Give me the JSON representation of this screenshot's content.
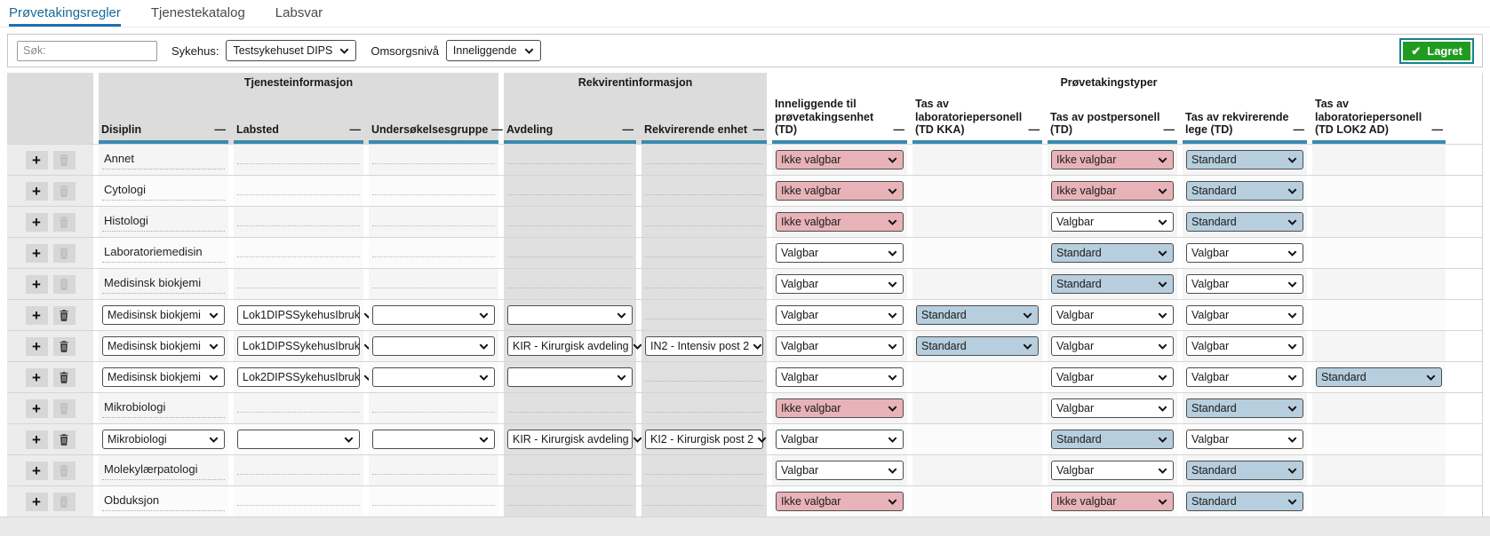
{
  "tabs": [
    {
      "label": "Prøvetakingsregler",
      "active": true
    },
    {
      "label": "Tjenestekatalog",
      "active": false
    },
    {
      "label": "Labsvar",
      "active": false
    }
  ],
  "toolbar": {
    "search_placeholder": "Søk:",
    "hospital_label": "Sykehus:",
    "hospital_value": "Testsykehuset DIPS",
    "care_level_label": "Omsorgsnivå",
    "care_level_value": "Inneliggende",
    "saved_button": "Lagret"
  },
  "icons": {
    "add": "+",
    "collapse": "—",
    "check": "✔"
  },
  "colors": {
    "header_accent_teal": "#3a8ab0",
    "tab_underline_blue": "#1d70b0",
    "saved_green": "#1f9c1f",
    "saved_border_teal": "#17808f",
    "not_selectable_pink": "#e8b3b8",
    "standard_blue": "#b6cedd"
  },
  "table": {
    "groups": [
      "Tjenesteinformasjon",
      "Rekvirentinformasjon",
      "Prøvetakingstyper"
    ],
    "columns": [
      "Disiplin",
      "Labsted",
      "Undersøkelsesgruppe",
      "Avdeling",
      "Rekvirerende enhet",
      "Inneliggende til prøvetakingsenhet (TD)",
      "Tas av laboratoriepersonell (TD KKA)",
      "Tas av postpersonell (TD)",
      "Tas av rekvirerende lege (TD)",
      "Tas av laboratoriepersonell (TD LOK2 AD)"
    ],
    "select_options": {
      "selectable": "Valgbar",
      "not_selectable": "Ikke valgbar",
      "standard": "Standard"
    },
    "rows": [
      {
        "kind": "group",
        "disiplin": "Annet",
        "pt": [
          {
            "value": "Ikke valgbar",
            "variant": "pink"
          },
          null,
          {
            "value": "Ikke valgbar",
            "variant": "pink"
          },
          {
            "value": "Standard",
            "variant": "blue"
          },
          null
        ]
      },
      {
        "kind": "group",
        "disiplin": "Cytologi",
        "pt": [
          {
            "value": "Ikke valgbar",
            "variant": "pink"
          },
          null,
          {
            "value": "Ikke valgbar",
            "variant": "pink"
          },
          {
            "value": "Standard",
            "variant": "blue"
          },
          null
        ]
      },
      {
        "kind": "group",
        "disiplin": "Histologi",
        "pt": [
          {
            "value": "Ikke valgbar",
            "variant": "pink"
          },
          null,
          {
            "value": "Valgbar",
            "variant": "white"
          },
          {
            "value": "Standard",
            "variant": "blue"
          },
          null
        ]
      },
      {
        "kind": "group",
        "disiplin": "Laboratoriemedisin",
        "pt": [
          {
            "value": "Valgbar",
            "variant": "white"
          },
          null,
          {
            "value": "Standard",
            "variant": "blue"
          },
          {
            "value": "Valgbar",
            "variant": "white"
          },
          null
        ]
      },
      {
        "kind": "group",
        "disiplin": "Medisinsk biokjemi",
        "pt": [
          {
            "value": "Valgbar",
            "variant": "white"
          },
          null,
          {
            "value": "Standard",
            "variant": "blue"
          },
          {
            "value": "Valgbar",
            "variant": "white"
          },
          null
        ]
      },
      {
        "kind": "detail",
        "disiplin": "Medisinsk biokjemi",
        "labsted": "Lok1DIPSSykehusIbruk",
        "undersokelsesgruppe": "",
        "avdeling": "",
        "rekvirerende_enhet": null,
        "pt": [
          {
            "value": "Valgbar",
            "variant": "white"
          },
          {
            "value": "Standard",
            "variant": "blue"
          },
          {
            "value": "Valgbar",
            "variant": "white"
          },
          {
            "value": "Valgbar",
            "variant": "white"
          },
          null
        ]
      },
      {
        "kind": "detail",
        "disiplin": "Medisinsk biokjemi",
        "labsted": "Lok1DIPSSykehusIbruk",
        "undersokelsesgruppe": "",
        "avdeling": "KIR - Kirurgisk avdeling",
        "rekvirerende_enhet": "IN2 - Intensiv post 2",
        "pt": [
          {
            "value": "Valgbar",
            "variant": "white"
          },
          {
            "value": "Standard",
            "variant": "blue"
          },
          {
            "value": "Valgbar",
            "variant": "white"
          },
          {
            "value": "Valgbar",
            "variant": "white"
          },
          null
        ]
      },
      {
        "kind": "detail",
        "disiplin": "Medisinsk biokjemi",
        "labsted": "Lok2DIPSSykehusIbruk",
        "undersokelsesgruppe": "",
        "avdeling": "",
        "rekvirerende_enhet": null,
        "pt": [
          {
            "value": "Valgbar",
            "variant": "white"
          },
          null,
          {
            "value": "Valgbar",
            "variant": "white"
          },
          {
            "value": "Valgbar",
            "variant": "white"
          },
          {
            "value": "Standard",
            "variant": "blue"
          }
        ]
      },
      {
        "kind": "group",
        "disiplin": "Mikrobiologi",
        "pt": [
          {
            "value": "Ikke valgbar",
            "variant": "pink"
          },
          null,
          {
            "value": "Valgbar",
            "variant": "white"
          },
          {
            "value": "Standard",
            "variant": "blue"
          },
          null
        ]
      },
      {
        "kind": "detail",
        "disiplin": "Mikrobiologi",
        "labsted": "",
        "undersokelsesgruppe": "",
        "avdeling": "KIR - Kirurgisk avdeling",
        "rekvirerende_enhet": "KI2 - Kirurgisk post 2",
        "pt": [
          {
            "value": "Valgbar",
            "variant": "white"
          },
          null,
          {
            "value": "Standard",
            "variant": "blue"
          },
          {
            "value": "Valgbar",
            "variant": "white"
          },
          null
        ]
      },
      {
        "kind": "group",
        "disiplin": "Molekylærpatologi",
        "pt": [
          {
            "value": "Valgbar",
            "variant": "white"
          },
          null,
          {
            "value": "Valgbar",
            "variant": "white"
          },
          {
            "value": "Standard",
            "variant": "blue"
          },
          null
        ]
      },
      {
        "kind": "group",
        "disiplin": "Obduksjon",
        "pt": [
          {
            "value": "Ikke valgbar",
            "variant": "pink"
          },
          null,
          {
            "value": "Ikke valgbar",
            "variant": "pink"
          },
          {
            "value": "Standard",
            "variant": "blue"
          },
          null
        ]
      }
    ]
  }
}
